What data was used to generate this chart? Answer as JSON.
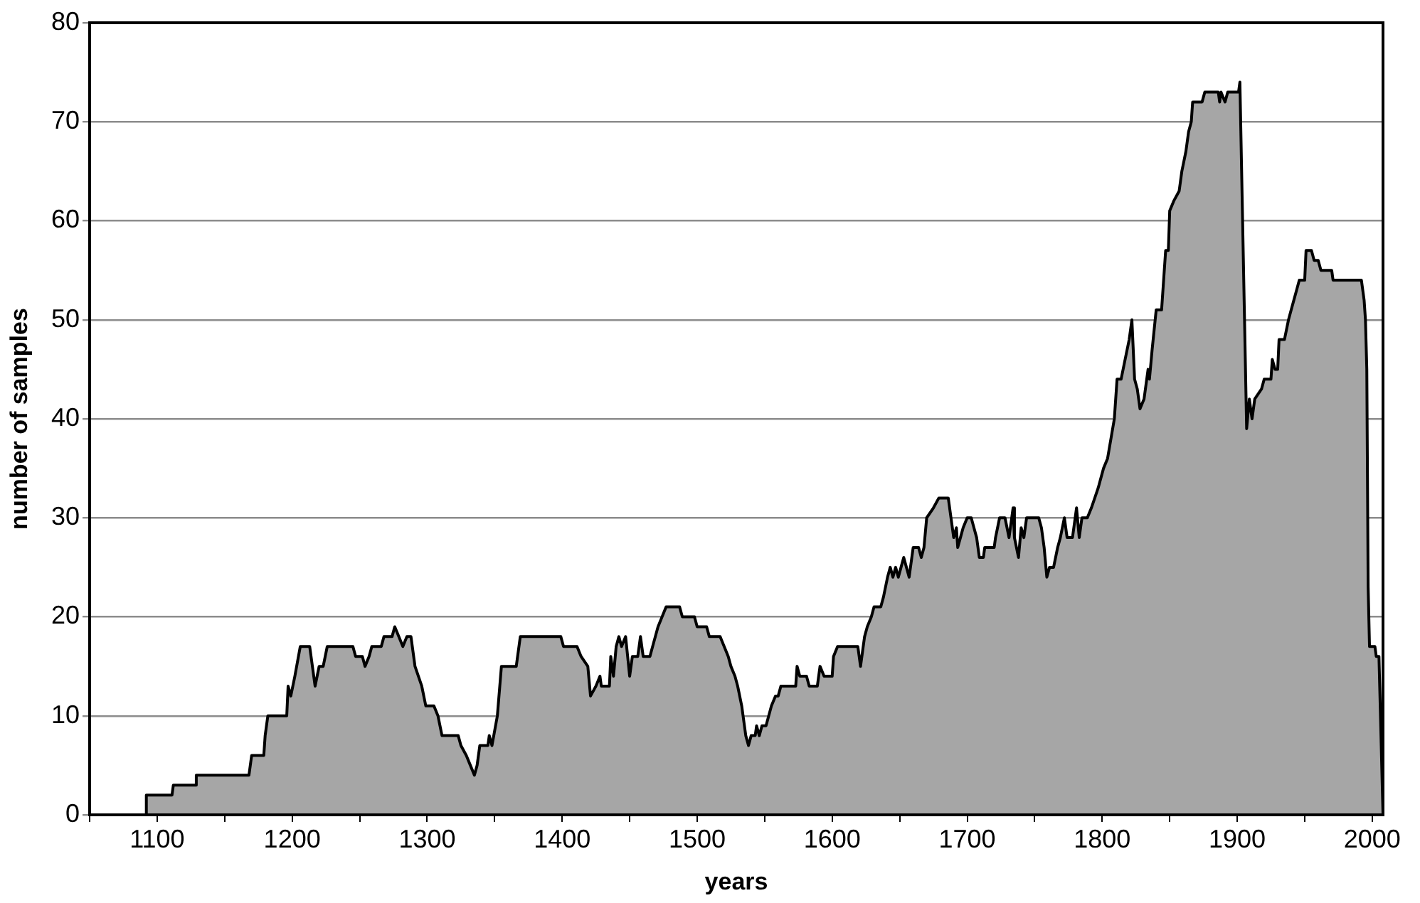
{
  "chart_data": {
    "type": "area",
    "xlabel": "years",
    "ylabel": "number of samples",
    "x": [
      1092,
      1092,
      1111,
      1112,
      1128,
      1129,
      1168,
      1170,
      1179,
      1180,
      1182,
      1196,
      1197,
      1199,
      1202,
      1206,
      1213,
      1217,
      1220,
      1223,
      1226,
      1245,
      1247,
      1252,
      1254,
      1257,
      1259,
      1266,
      1268,
      1274,
      1276,
      1279,
      1282,
      1285,
      1288,
      1291,
      1296,
      1299,
      1305,
      1308,
      1311,
      1323,
      1325,
      1329,
      1332,
      1335,
      1337,
      1339,
      1345,
      1346,
      1348,
      1352,
      1355,
      1366,
      1369,
      1399,
      1401,
      1411,
      1414,
      1419,
      1421,
      1425,
      1428,
      1429,
      1435,
      1436,
      1438,
      1440,
      1442,
      1444,
      1447,
      1450,
      1452,
      1456,
      1458,
      1460,
      1465,
      1467,
      1471,
      1474,
      1477,
      1487,
      1489,
      1498,
      1500,
      1507,
      1509,
      1517,
      1520,
      1523,
      1525,
      1528,
      1530,
      1533,
      1536,
      1538,
      1540,
      1543,
      1544,
      1546,
      1548,
      1551,
      1553,
      1555,
      1558,
      1560,
      1562,
      1573,
      1574,
      1576,
      1581,
      1583,
      1589,
      1591,
      1594,
      1600,
      1601,
      1604,
      1619,
      1621,
      1624,
      1626,
      1629,
      1631,
      1636,
      1638,
      1641,
      1643,
      1645,
      1647,
      1649,
      1651,
      1653,
      1657,
      1660,
      1664,
      1666,
      1668,
      1670,
      1675,
      1679,
      1686,
      1688,
      1690,
      1692,
      1693,
      1695,
      1697,
      1700,
      1703,
      1705,
      1707,
      1709,
      1712,
      1713,
      1720,
      1721,
      1724,
      1728,
      1731,
      1733,
      1734,
      1735,
      1738,
      1740,
      1742,
      1744,
      1753,
      1755,
      1757,
      1759,
      1761,
      1764,
      1767,
      1769,
      1772,
      1774,
      1778,
      1781,
      1783,
      1785,
      1789,
      1792,
      1797,
      1801,
      1804,
      1809,
      1811,
      1814,
      1817,
      1820,
      1822,
      1824,
      1826,
      1828,
      1831,
      1834,
      1835,
      1837,
      1840,
      1844,
      1845,
      1847,
      1849,
      1850,
      1853,
      1857,
      1859,
      1862,
      1864,
      1866,
      1867,
      1874,
      1876,
      1886,
      1887,
      1888,
      1891,
      1893,
      1901,
      1902,
      1907,
      1909,
      1911,
      1913,
      1918,
      1920,
      1925,
      1926,
      1928,
      1930,
      1931,
      1935,
      1938,
      1940,
      1942,
      1944,
      1946,
      1950,
      1951,
      1955,
      1957,
      1960,
      1962,
      1970,
      1971,
      1992,
      1994,
      1995,
      1996,
      1997,
      1998,
      2002,
      2003,
      2005,
      2008
    ],
    "values": [
      0,
      2,
      2,
      3,
      3,
      4,
      4,
      6,
      6,
      8,
      10,
      10,
      13,
      12,
      14,
      17,
      17,
      13,
      15,
      15,
      17,
      17,
      16,
      16,
      15,
      16,
      17,
      17,
      18,
      18,
      19,
      18,
      17,
      18,
      18,
      15,
      13,
      11,
      11,
      10,
      8,
      8,
      7,
      6,
      5,
      4,
      5,
      7,
      7,
      8,
      7,
      10,
      15,
      15,
      18,
      18,
      17,
      17,
      16,
      15,
      12,
      13,
      14,
      13,
      13,
      16,
      14,
      17,
      18,
      17,
      18,
      14,
      16,
      16,
      18,
      16,
      16,
      17,
      19,
      20,
      21,
      21,
      20,
      20,
      19,
      19,
      18,
      18,
      17,
      16,
      15,
      14,
      13,
      11,
      8,
      7,
      8,
      8,
      9,
      8,
      9,
      9,
      10,
      11,
      12,
      12,
      13,
      13,
      15,
      14,
      14,
      13,
      13,
      15,
      14,
      14,
      16,
      17,
      17,
      15,
      18,
      19,
      20,
      21,
      21,
      22,
      24,
      25,
      24,
      25,
      24,
      25,
      26,
      24,
      27,
      27,
      26,
      27,
      30,
      31,
      32,
      32,
      30,
      28,
      29,
      27,
      28,
      29,
      30,
      30,
      29,
      28,
      26,
      26,
      27,
      27,
      28,
      30,
      30,
      28,
      30,
      31,
      28,
      26,
      29,
      28,
      30,
      30,
      29,
      27,
      24,
      25,
      25,
      27,
      28,
      30,
      28,
      28,
      31,
      28,
      30,
      30,
      31,
      33,
      35,
      36,
      40,
      44,
      44,
      46,
      48,
      50,
      44,
      43,
      41,
      42,
      45,
      44,
      47,
      51,
      51,
      53,
      57,
      57,
      61,
      62,
      63,
      65,
      67,
      69,
      70,
      72,
      72,
      73,
      73,
      72,
      73,
      72,
      73,
      73,
      74,
      39,
      42,
      40,
      42,
      43,
      44,
      44,
      46,
      45,
      45,
      48,
      48,
      50,
      51,
      52,
      53,
      54,
      54,
      57,
      57,
      56,
      56,
      55,
      55,
      54,
      54,
      52,
      50,
      45,
      23,
      17,
      17,
      16,
      16,
      0
    ],
    "color": "#a6a6a6",
    "xlim": [
      1050,
      2008
    ],
    "xticks": [
      {
        "value": 1050,
        "label": null
      },
      1100,
      {
        "value": 1150,
        "label": null
      },
      1200,
      {
        "value": 1250,
        "label": null
      },
      1300,
      {
        "value": 1350,
        "label": null
      },
      1400,
      {
        "value": 1450,
        "label": null
      },
      1500,
      {
        "value": 1550,
        "label": null
      },
      1600,
      {
        "value": 1650,
        "label": null
      },
      1700,
      {
        "value": 1750,
        "label": null
      },
      1800,
      {
        "value": 1850,
        "label": null
      },
      1900,
      {
        "value": 1950,
        "label": null
      },
      2000
    ],
    "ylim": [
      0,
      80
    ],
    "yticks": [
      0,
      10,
      20,
      30,
      40,
      50,
      60,
      70,
      80
    ],
    "grid": "y"
  }
}
